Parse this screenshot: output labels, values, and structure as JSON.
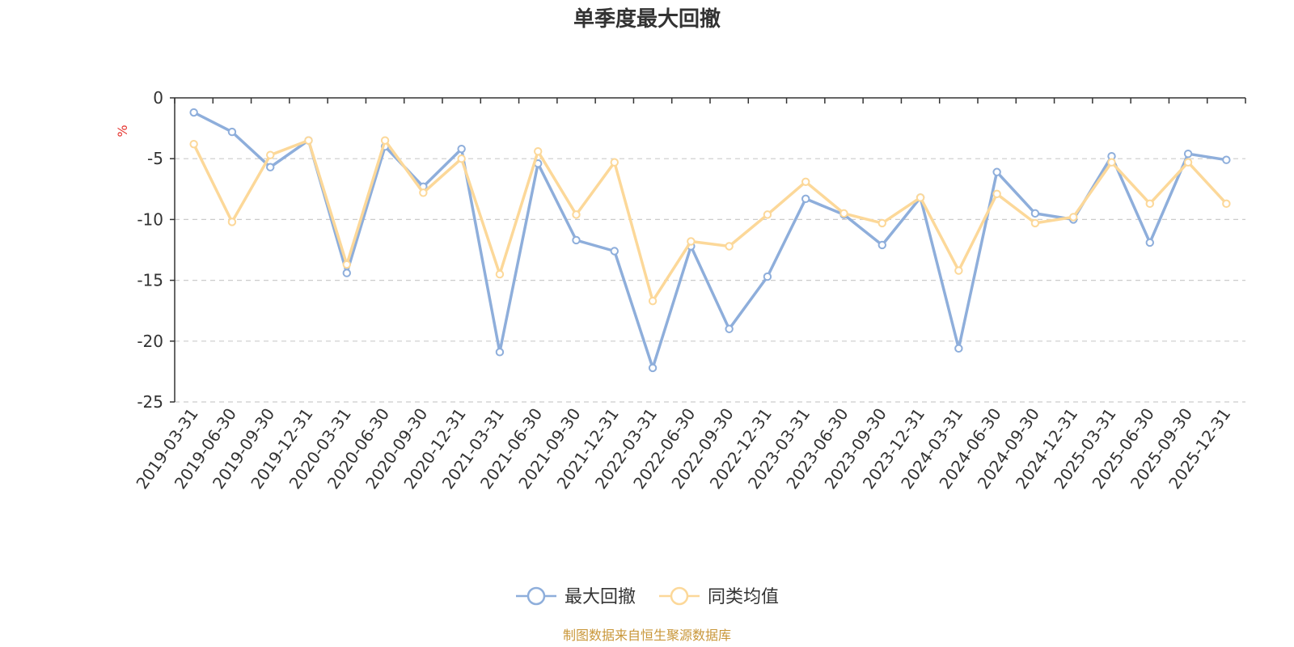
{
  "chart_data": {
    "type": "line",
    "title": "单季度最大回撤",
    "ylabel": "%",
    "ylim": [
      -25,
      0
    ],
    "yticks": [
      0,
      -5,
      -10,
      -15,
      -20,
      -25
    ],
    "grid": "y-dashed",
    "categories": [
      "2019-03-31",
      "2019-06-30",
      "2019-09-30",
      "2019-12-31",
      "2020-03-31",
      "2020-06-30",
      "2020-09-30",
      "2020-12-31",
      "2021-03-31",
      "2021-06-30",
      "2021-09-30",
      "2021-12-31",
      "2022-03-31",
      "2022-06-30",
      "2022-09-30",
      "2022-12-31",
      "2023-03-31",
      "2023-06-30",
      "2023-09-30",
      "2023-12-31",
      "2024-03-31",
      "2024-06-30",
      "2024-09-30",
      "2024-12-31",
      "2025-03-31",
      "2025-06-30",
      "2025-09-30",
      "2025-12-31"
    ],
    "series": [
      {
        "name": "最大回撤",
        "color": "#8eaedb",
        "values": [
          -1.2,
          -2.8,
          -5.7,
          -3.5,
          -14.4,
          -4.0,
          -7.3,
          -4.2,
          -20.9,
          -5.4,
          -11.7,
          -12.6,
          -22.2,
          -12.2,
          -19.0,
          -14.7,
          -8.3,
          -9.6,
          -12.1,
          -8.2,
          -20.6,
          -6.1,
          -9.5,
          -10.0,
          -4.8,
          -11.9,
          -4.6,
          -5.1
        ]
      },
      {
        "name": "同类均值",
        "color": "#fcd899",
        "values": [
          -3.8,
          -10.2,
          -4.7,
          -3.5,
          -13.7,
          -3.5,
          -7.8,
          -5.0,
          -14.5,
          -4.4,
          -9.6,
          -5.3,
          -16.7,
          -11.8,
          -12.2,
          -9.6,
          -6.9,
          -9.5,
          -10.3,
          -8.2,
          -14.2,
          -7.9,
          -10.3,
          -9.8,
          -5.3,
          -8.7,
          -5.3,
          -8.7
        ]
      }
    ],
    "legend_position": "bottom-center"
  },
  "source_note": "制图数据来自恒生聚源数据库",
  "colors": {
    "axis": "#333333",
    "grid": "#cccccc",
    "unit": "#e5322d",
    "source": "#c9973a"
  }
}
